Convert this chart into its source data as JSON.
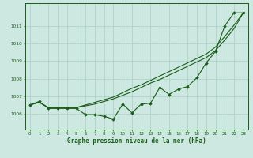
{
  "title": "Graphe pression niveau de la mer (hPa)",
  "background_color": "#cce8e0",
  "grid_color": "#aacfc8",
  "line_color": "#1a5c1a",
  "marker_color": "#1a5c1a",
  "xlim": [
    -0.5,
    23.5
  ],
  "ylim": [
    1005.1,
    1012.3
  ],
  "xticks": [
    0,
    1,
    2,
    3,
    4,
    5,
    6,
    7,
    8,
    9,
    10,
    11,
    12,
    13,
    14,
    15,
    16,
    17,
    18,
    19,
    20,
    21,
    22,
    23
  ],
  "yticks": [
    1006,
    1007,
    1008,
    1009,
    1010,
    1011
  ],
  "y_main": [
    1006.5,
    1006.7,
    1006.3,
    1006.3,
    1006.3,
    1006.3,
    1005.95,
    1005.95,
    1005.85,
    1005.7,
    1006.55,
    1006.05,
    1006.55,
    1006.6,
    1007.5,
    1007.1,
    1007.4,
    1007.55,
    1008.05,
    1008.9,
    1009.55,
    1011.0,
    1011.75,
    1011.75
  ],
  "y_smooth1": [
    1006.5,
    1006.65,
    1006.35,
    1006.35,
    1006.35,
    1006.35,
    1006.5,
    1006.65,
    1006.8,
    1006.95,
    1007.2,
    1007.45,
    1007.65,
    1007.9,
    1008.15,
    1008.4,
    1008.65,
    1008.9,
    1009.15,
    1009.4,
    1009.8,
    1010.4,
    1011.05,
    1011.75
  ],
  "y_smooth2": [
    1006.5,
    1006.65,
    1006.35,
    1006.35,
    1006.35,
    1006.35,
    1006.45,
    1006.55,
    1006.7,
    1006.85,
    1007.05,
    1007.25,
    1007.5,
    1007.75,
    1007.95,
    1008.2,
    1008.45,
    1008.7,
    1008.95,
    1009.2,
    1009.6,
    1010.2,
    1010.85,
    1011.75
  ]
}
